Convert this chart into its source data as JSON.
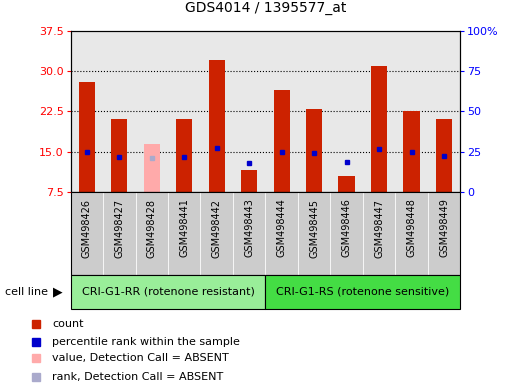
{
  "title": "GDS4014 / 1395577_at",
  "samples": [
    "GSM498426",
    "GSM498427",
    "GSM498428",
    "GSM498441",
    "GSM498442",
    "GSM498443",
    "GSM498444",
    "GSM498445",
    "GSM498446",
    "GSM498447",
    "GSM498448",
    "GSM498449"
  ],
  "counts": [
    28.0,
    21.0,
    16.5,
    21.0,
    32.0,
    11.5,
    26.5,
    23.0,
    10.5,
    31.0,
    22.5,
    21.0
  ],
  "ranks_pct": [
    25.0,
    22.0,
    21.0,
    22.0,
    27.5,
    18.0,
    25.0,
    24.0,
    18.5,
    26.5,
    24.5,
    22.5
  ],
  "absent_mask": [
    false,
    false,
    true,
    false,
    false,
    false,
    false,
    false,
    false,
    false,
    false,
    false
  ],
  "ylim_left": [
    7.5,
    37.5
  ],
  "ylim_right": [
    0,
    100
  ],
  "yticks_left": [
    7.5,
    15.0,
    22.5,
    30.0,
    37.5
  ],
  "yticks_right": [
    0,
    25,
    50,
    75,
    100
  ],
  "hlines": [
    15.0,
    22.5,
    30.0
  ],
  "bar_color": "#cc2200",
  "bar_color_absent": "#ffaaaa",
  "rank_color": "#0000cc",
  "rank_color_absent": "#aaaacc",
  "group1_label": "CRI-G1-RR (rotenone resistant)",
  "group2_label": "CRI-G1-RS (rotenone sensitive)",
  "group1_indices": [
    0,
    1,
    2,
    3,
    4,
    5
  ],
  "group2_indices": [
    6,
    7,
    8,
    9,
    10,
    11
  ],
  "cell_line_label": "cell line",
  "legend_items": [
    {
      "label": "count",
      "color": "#cc2200"
    },
    {
      "label": "percentile rank within the sample",
      "color": "#0000cc"
    },
    {
      "label": "value, Detection Call = ABSENT",
      "color": "#ffaaaa"
    },
    {
      "label": "rank, Detection Call = ABSENT",
      "color": "#aaaacc"
    }
  ],
  "bar_width": 0.5,
  "plot_bg": "#e8e8e8",
  "white_bg": "#ffffff",
  "group1_color": "#99ee99",
  "group2_color": "#44dd44",
  "tick_bg": "#cccccc"
}
